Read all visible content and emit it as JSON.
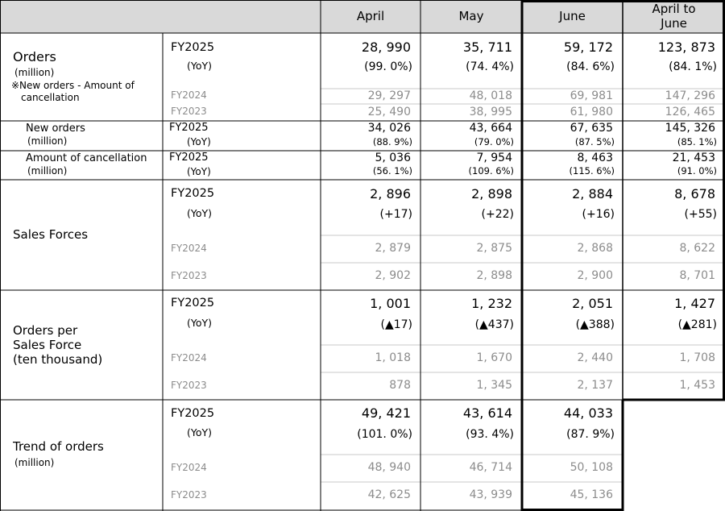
{
  "header": {
    "months": [
      "April",
      "May",
      "June"
    ],
    "total_line1": "April to",
    "total_line2": "June"
  },
  "orders": {
    "title": "Orders",
    "unit": "(million)",
    "note1": "※New orders - Amount of",
    "note2": "cancellation",
    "fy2025": {
      "label": "FY2025",
      "values": [
        "28, 990",
        "35, 711",
        "59, 172",
        "123, 873"
      ]
    },
    "yoy": {
      "label": "(YoY)",
      "values": [
        "(99. 0%)",
        "(74. 4%)",
        "(84. 6%)",
        "(84. 1%)"
      ]
    },
    "fy2024": {
      "label": "FY2024",
      "values": [
        "29, 297",
        "48, 018",
        "69, 981",
        "147, 296"
      ]
    },
    "fy2023": {
      "label": "FY2023",
      "values": [
        "25, 490",
        "38, 995",
        "61, 980",
        "126, 465"
      ]
    },
    "new_orders": {
      "title": "New orders",
      "unit": "(million)",
      "fy_label": "FY2025",
      "yoy_label": "(YoY)",
      "values": [
        "34, 026",
        "43, 664",
        "67, 635",
        "145, 326"
      ],
      "yoy": [
        "(88. 9%)",
        "(79. 0%)",
        "(87. 5%)",
        "(85. 1%)"
      ]
    },
    "cancellation": {
      "title": "Amount of cancellation",
      "unit": "(million)",
      "fy_label": "FY2025",
      "yoy_label": "(YoY)",
      "values": [
        "5, 036",
        "7, 954",
        "8, 463",
        "21, 453"
      ],
      "yoy": [
        "(56. 1%)",
        "(109. 6%)",
        "(115. 6%)",
        "(91. 0%)"
      ]
    }
  },
  "sales_forces": {
    "title": "Sales Forces",
    "fy2025": {
      "label": "FY2025",
      "values": [
        "2, 896",
        "2, 898",
        "2, 884",
        "8, 678"
      ]
    },
    "yoy": {
      "label": "(YoY)",
      "values": [
        "(+17)",
        "(+22)",
        "(+16)",
        "(+55)"
      ]
    },
    "fy2024": {
      "label": "FY2024",
      "values": [
        "2, 879",
        "2, 875",
        "2, 868",
        "8, 622"
      ]
    },
    "fy2023": {
      "label": "FY2023",
      "values": [
        "2, 902",
        "2, 898",
        "2, 900",
        "8, 701"
      ]
    }
  },
  "orders_per_sf": {
    "title1": "Orders per",
    "title2": "Sales Force",
    "title3": "(ten thousand)",
    "fy2025": {
      "label": "FY2025",
      "values": [
        "1, 001",
        "1, 232",
        "2, 051",
        "1, 427"
      ]
    },
    "yoy": {
      "label": "(YoY)",
      "values": [
        "(▲17)",
        "(▲437)",
        "(▲388)",
        "(▲281)"
      ]
    },
    "fy2024": {
      "label": "FY2024",
      "values": [
        "1, 018",
        "1, 670",
        "2, 440",
        "1, 708"
      ]
    },
    "fy2023": {
      "label": "FY2023",
      "values": [
        "878",
        "1, 345",
        "2, 137",
        "1, 453"
      ]
    }
  },
  "trend": {
    "title": "Trend of orders",
    "unit": "(million)",
    "fy2025": {
      "label": "FY2025",
      "values": [
        "49, 421",
        "43, 614",
        "44, 033"
      ]
    },
    "yoy": {
      "label": "(YoY)",
      "values": [
        "(101. 0%)",
        "(93. 4%)",
        "(87. 9%)"
      ]
    },
    "fy2024": {
      "label": "FY2024",
      "values": [
        "48, 940",
        "46, 714",
        "50, 108"
      ]
    },
    "fy2023": {
      "label": "FY2023",
      "values": [
        "42, 625",
        "43, 939",
        "45, 136"
      ]
    }
  }
}
